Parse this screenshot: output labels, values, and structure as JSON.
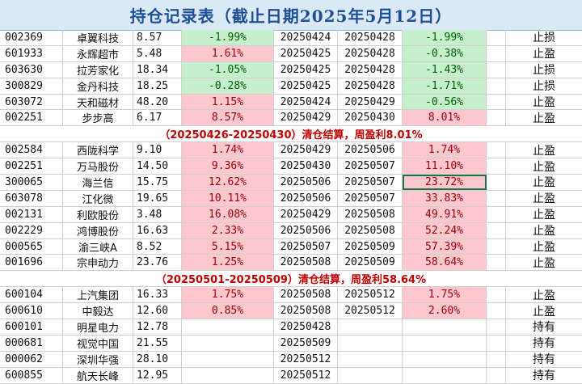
{
  "title": "持仓记录表（截止日期2025年5月12日）",
  "rows": [
    {
      "type": "data",
      "code": "002369",
      "name": "卓翼科技",
      "cost": "8.57",
      "pct1": "-1.99%",
      "pct1_style": "loss",
      "buy": "20250424",
      "sell": "20250428",
      "pct2": "-1.99%",
      "pct2_style": "loss",
      "status": "止损"
    },
    {
      "type": "data",
      "code": "601933",
      "name": "永辉超市",
      "cost": "5.48",
      "pct1": "1.61%",
      "pct1_style": "gain",
      "buy": "20250425",
      "sell": "20250428",
      "pct2": "-0.38%",
      "pct2_style": "loss",
      "status": "止盈"
    },
    {
      "type": "data",
      "code": "603630",
      "name": "拉芳家化",
      "cost": "18.34",
      "pct1": "-1.05%",
      "pct1_style": "loss",
      "buy": "20250425",
      "sell": "20250428",
      "pct2": "-1.43%",
      "pct2_style": "loss",
      "status": "止损"
    },
    {
      "type": "data",
      "code": "300829",
      "name": "金丹科技",
      "cost": "18.25",
      "pct1": "-0.28%",
      "pct1_style": "loss",
      "buy": "20250425",
      "sell": "20250428",
      "pct2": "-1.71%",
      "pct2_style": "loss",
      "status": "止损"
    },
    {
      "type": "data",
      "code": "603072",
      "name": "天和磁材",
      "cost": "48.20",
      "pct1": "1.15%",
      "pct1_style": "gain",
      "buy": "20250424",
      "sell": "20250429",
      "pct2": "-0.56%",
      "pct2_style": "loss",
      "status": "止盈"
    },
    {
      "type": "data",
      "code": "002251",
      "name": "步步高",
      "cost": "6.17",
      "pct1": "8.57%",
      "pct1_style": "gain",
      "buy": "20250429",
      "sell": "20250430",
      "pct2": "8.01%",
      "pct2_style": "gain",
      "status": "止盈"
    },
    {
      "type": "summary",
      "text": "（20250426-20250430）清仓结算，周盈利8.01%"
    },
    {
      "type": "data",
      "code": "002584",
      "name": "西陇科学",
      "cost": "9.10",
      "pct1": "1.74%",
      "pct1_style": "gain",
      "buy": "20250429",
      "sell": "20250506",
      "pct2": "1.74%",
      "pct2_style": "gain",
      "status": "止盈"
    },
    {
      "type": "data",
      "code": "002251",
      "name": "万马股份",
      "cost": "14.50",
      "pct1": "9.36%",
      "pct1_style": "gain",
      "buy": "20250430",
      "sell": "20250507",
      "pct2": "11.10%",
      "pct2_style": "gain",
      "status": "止盈"
    },
    {
      "type": "data",
      "code": "300065",
      "name": "海兰信",
      "cost": "15.75",
      "pct1": "12.62%",
      "pct1_style": "gain",
      "buy": "20250506",
      "sell": "20250507",
      "pct2": "23.72%",
      "pct2_style": "gain",
      "status": "止盈",
      "selected": true
    },
    {
      "type": "data",
      "code": "603078",
      "name": "江化微",
      "cost": "19.65",
      "pct1": "10.11%",
      "pct1_style": "gain",
      "buy": "20250506",
      "sell": "20250507",
      "pct2": "33.83%",
      "pct2_style": "gain",
      "status": "止盈"
    },
    {
      "type": "data",
      "code": "002131",
      "name": "利欧股份",
      "cost": "3.48",
      "pct1": "16.08%",
      "pct1_style": "gain",
      "buy": "20250429",
      "sell": "20250508",
      "pct2": "49.91%",
      "pct2_style": "gain",
      "status": "止盈"
    },
    {
      "type": "data",
      "code": "002229",
      "name": "鸿博股份",
      "cost": "16.63",
      "pct1": "2.33%",
      "pct1_style": "gain",
      "buy": "20250506",
      "sell": "20250508",
      "pct2": "52.24%",
      "pct2_style": "gain",
      "status": "止盈"
    },
    {
      "type": "data",
      "code": "000565",
      "name": "渝三峡A",
      "cost": "8.52",
      "pct1": "5.15%",
      "pct1_style": "gain",
      "buy": "20250507",
      "sell": "20250509",
      "pct2": "57.39%",
      "pct2_style": "gain",
      "status": "止盈"
    },
    {
      "type": "data",
      "code": "001696",
      "name": "宗申动力",
      "cost": "23.76",
      "pct1": "1.25%",
      "pct1_style": "gain",
      "buy": "20250508",
      "sell": "20250509",
      "pct2": "58.64%",
      "pct2_style": "gain",
      "status": "止盈"
    },
    {
      "type": "summary",
      "text": "（20250501-20250509）清仓结算，周盈利58.64%"
    },
    {
      "type": "data",
      "code": "600104",
      "name": "上汽集团",
      "cost": "16.33",
      "pct1": "1.75%",
      "pct1_style": "gain",
      "buy": "20250508",
      "sell": "20250512",
      "pct2": "1.75%",
      "pct2_style": "gain",
      "status": "止盈"
    },
    {
      "type": "data",
      "code": "600610",
      "name": "中毅达",
      "cost": "12.60",
      "pct1": "0.85%",
      "pct1_style": "gain",
      "buy": "20250508",
      "sell": "20250512",
      "pct2": "2.60%",
      "pct2_style": "gain",
      "status": "止盈"
    },
    {
      "type": "data",
      "code": "600101",
      "name": "明星电力",
      "cost": "12.78",
      "pct1": "",
      "pct1_style": "none",
      "buy": "20250428",
      "sell": "",
      "pct2": "",
      "pct2_style": "none",
      "status": "持有"
    },
    {
      "type": "data",
      "code": "000681",
      "name": "视觉中国",
      "cost": "21.55",
      "pct1": "",
      "pct1_style": "none",
      "buy": "20250509",
      "sell": "",
      "pct2": "",
      "pct2_style": "none",
      "status": "持有"
    },
    {
      "type": "data",
      "code": "000062",
      "name": "深圳华强",
      "cost": "28.10",
      "pct1": "",
      "pct1_style": "none",
      "buy": "20250512",
      "sell": "",
      "pct2": "",
      "pct2_style": "none",
      "status": "持有"
    },
    {
      "type": "data",
      "code": "600855",
      "name": "航天长峰",
      "cost": "12.95",
      "pct1": "",
      "pct1_style": "none",
      "buy": "20250512",
      "sell": "",
      "pct2": "",
      "pct2_style": "none",
      "status": "持有"
    }
  ],
  "colors": {
    "gain_fill": "#ffc7ce",
    "gain_text": "#9c0006",
    "loss_fill": "#c6efce",
    "loss_text": "#006100",
    "summary_text": "#c00000",
    "title_text": "#1f4e96",
    "title_fill": "#dbe8f5",
    "selection": "#217346"
  }
}
